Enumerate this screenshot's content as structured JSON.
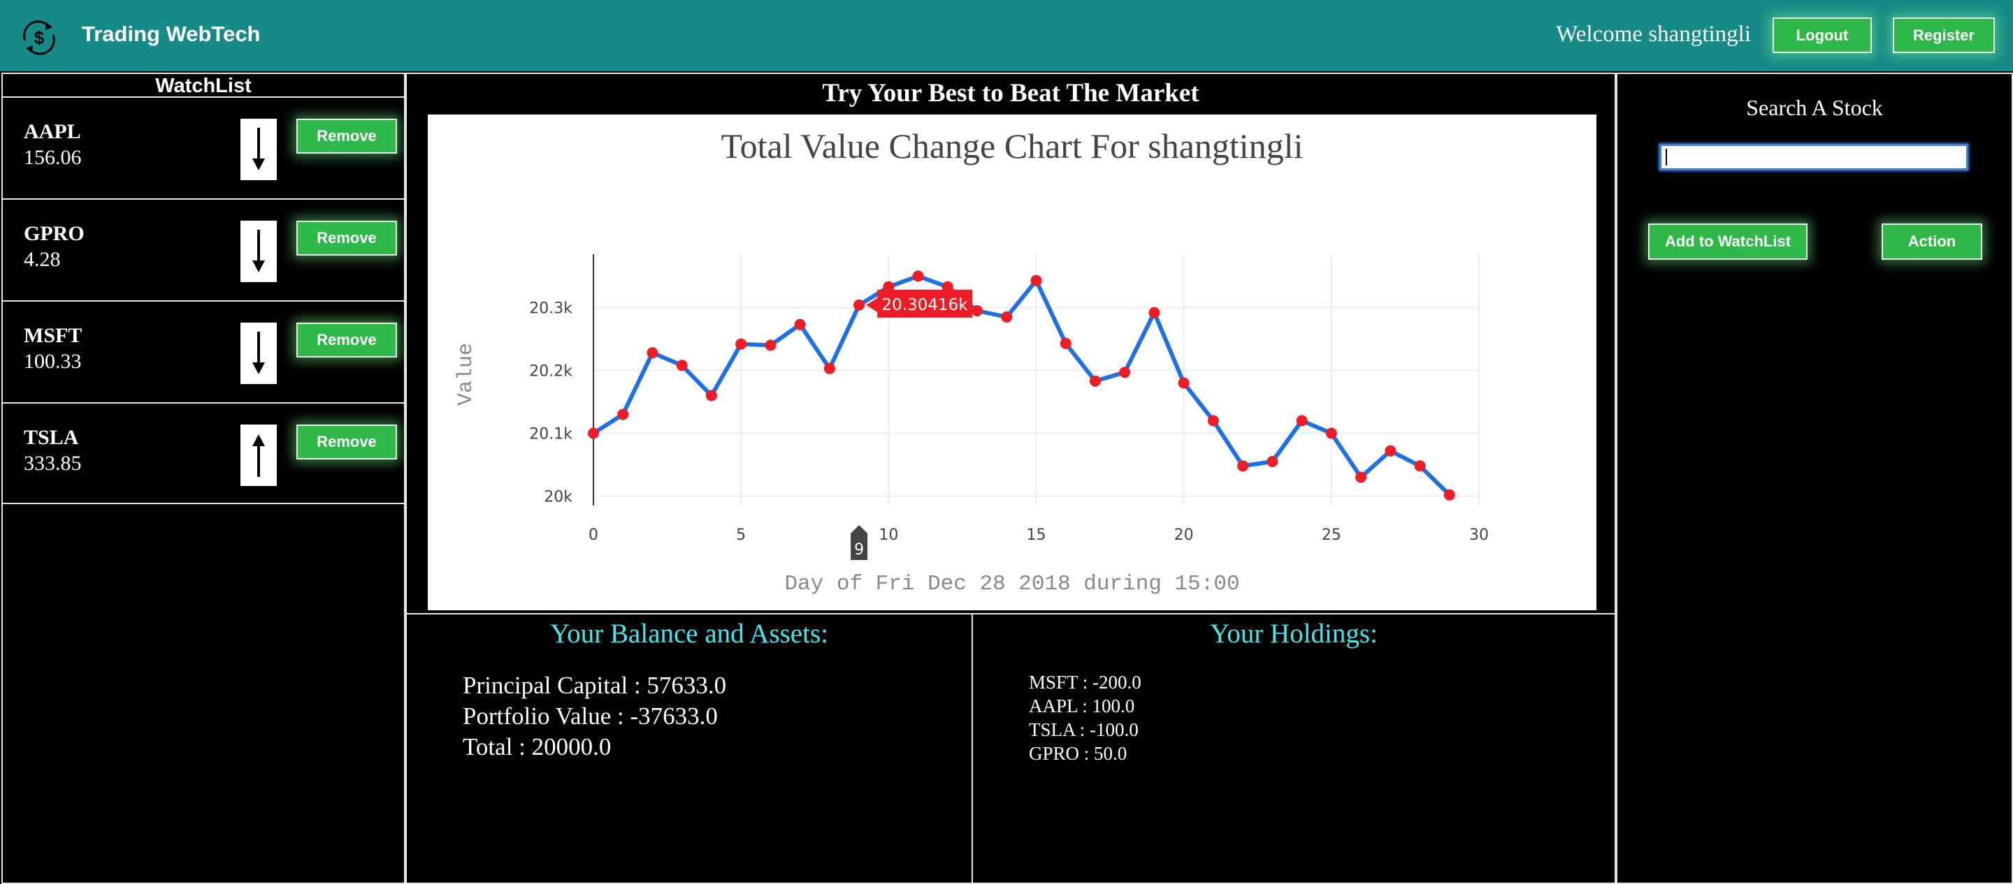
{
  "header": {
    "brand": "Trading WebTech",
    "welcome": "Welcome shangtingli",
    "logout_label": "Logout",
    "register_label": "Register",
    "logo_icon": "dollar-refresh-icon",
    "bar_color": "#158a87"
  },
  "watchlist": {
    "title": "WatchList",
    "remove_label": "Remove",
    "items": [
      {
        "symbol": "AAPL",
        "price": "156.06",
        "trend": "down"
      },
      {
        "symbol": "GPRO",
        "price": "4.28",
        "trend": "down"
      },
      {
        "symbol": "MSFT",
        "price": "100.33",
        "trend": "down"
      },
      {
        "symbol": "TSLA",
        "price": "333.85",
        "trend": "up"
      }
    ]
  },
  "main": {
    "title": "Try Your Best to Beat The Market"
  },
  "chart_data": {
    "type": "line",
    "title": "Total Value Change Chart For shangtingli",
    "xlabel": "Day of Fri Dec 28 2018 during 15:00",
    "ylabel": "Value",
    "x": [
      0,
      1,
      2,
      3,
      4,
      5,
      6,
      7,
      8,
      9,
      10,
      11,
      12,
      13,
      14,
      15,
      16,
      17,
      18,
      19,
      20,
      21,
      22,
      23,
      24,
      25,
      26,
      27,
      28,
      29
    ],
    "y": [
      20100,
      20130,
      20228,
      20208,
      20160,
      20242,
      20240,
      20273,
      20203,
      20304,
      20333,
      20350,
      20333,
      20295,
      20285,
      20343,
      20243,
      20183,
      20197,
      20292,
      20180,
      20120,
      20048,
      20055,
      20120,
      20100,
      20030,
      20072,
      20048,
      20002
    ],
    "xlim": [
      0,
      30
    ],
    "ylim": [
      19985,
      20385
    ],
    "xticks": [
      0,
      5,
      10,
      15,
      20,
      25,
      30
    ],
    "yticks": [
      20000,
      20100,
      20200,
      20300
    ],
    "ytick_labels": [
      "20k",
      "20.1k",
      "20.2k",
      "20.3k"
    ],
    "hover": {
      "x": 9,
      "value_label": "20.30416k",
      "x_label": "9"
    },
    "grid": true,
    "line_color": "#1f6fe5",
    "marker_color": "#ee1c25",
    "hover_color": "#ee1c25"
  },
  "balance": {
    "title": "Your Balance and Assets:",
    "lines": [
      "Principal Capital : 57633.0",
      "Portfolio Value : -37633.0",
      "Total : 20000.0"
    ]
  },
  "holdings": {
    "title": "Your Holdings:",
    "lines": [
      "MSFT : -200.0",
      "AAPL : 100.0",
      "TSLA : -100.0",
      "GPRO : 50.0"
    ]
  },
  "search": {
    "title": "Search A Stock",
    "input_value": "",
    "input_placeholder": "",
    "add_label": "Add to WatchList",
    "action_label": "Action"
  }
}
